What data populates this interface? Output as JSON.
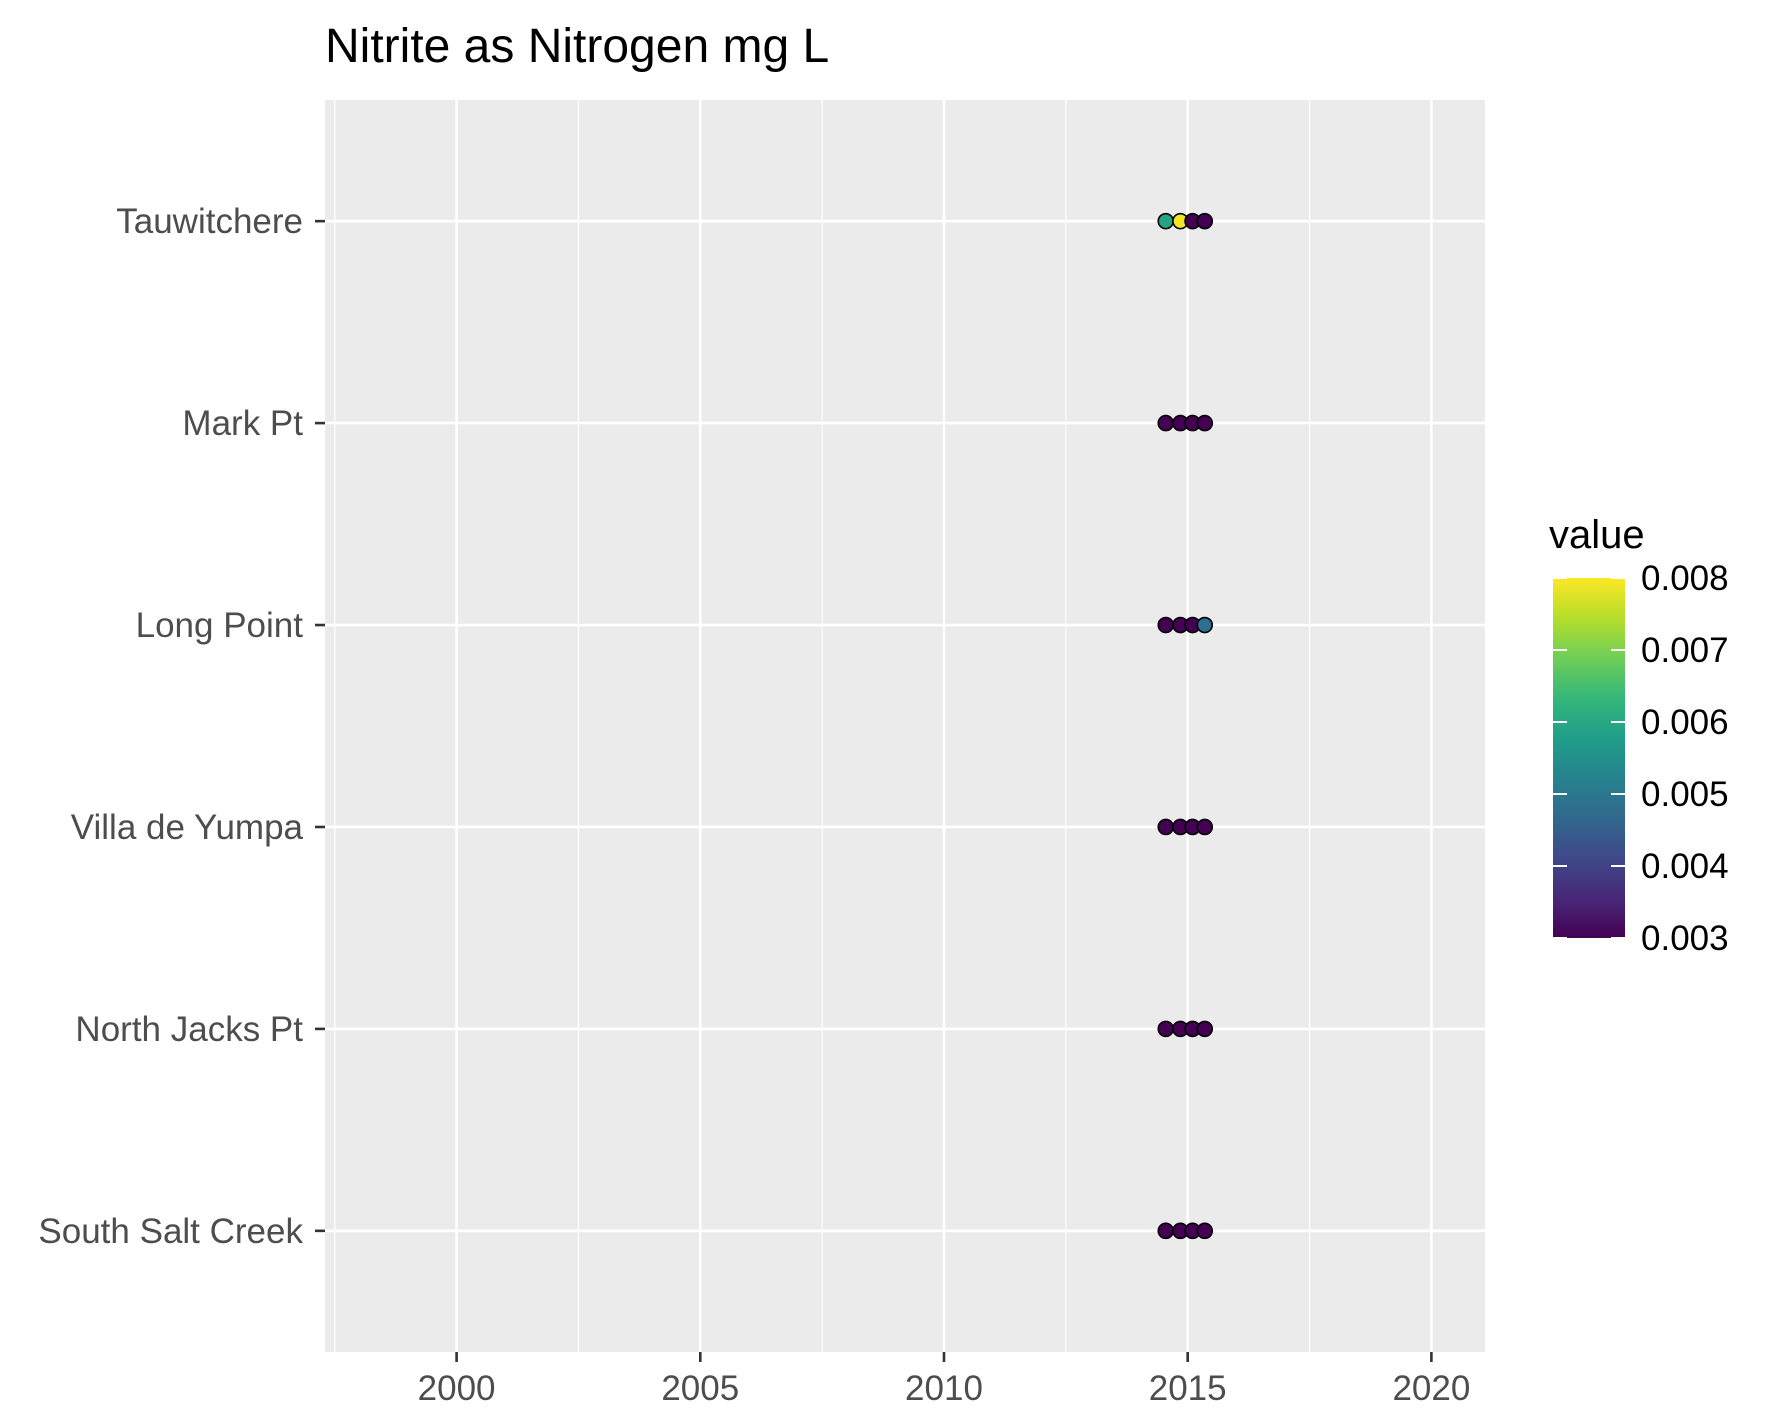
{
  "chart_data": {
    "type": "scatter",
    "title": "Nitrite as Nitrogen mg L",
    "xlabel": "",
    "ylabel": "",
    "xlim": [
      1997.3,
      2021.1
    ],
    "x_ticks": [
      2000,
      2005,
      2010,
      2015,
      2020
    ],
    "categories": [
      "Tauwitchere",
      "Mark Pt",
      "Long Point",
      "Villa de Yumpa",
      "North Jacks Pt",
      "South Salt Creek"
    ],
    "grid": true,
    "legend": {
      "title": "value",
      "placement": "right",
      "type": "colorbar",
      "min": 0.003,
      "max": 0.008,
      "ticks": [
        "0.008",
        "0.007",
        "0.006",
        "0.005",
        "0.004",
        "0.003"
      ]
    },
    "colormap": [
      "#440154",
      "#482878",
      "#3e4989",
      "#31688e",
      "#26828e",
      "#1f9e89",
      "#35b779",
      "#6ece58",
      "#b5de2b",
      "#fde725"
    ],
    "points": [
      {
        "site": "Tauwitchere",
        "x": 2014.55,
        "value": 0.0059
      },
      {
        "site": "Tauwitchere",
        "x": 2014.85,
        "value": 0.0079
      },
      {
        "site": "Tauwitchere",
        "x": 2015.1,
        "value": 0.003
      },
      {
        "site": "Tauwitchere",
        "x": 2015.35,
        "value": 0.003
      },
      {
        "site": "Mark Pt",
        "x": 2014.55,
        "value": 0.003
      },
      {
        "site": "Mark Pt",
        "x": 2014.85,
        "value": 0.003
      },
      {
        "site": "Mark Pt",
        "x": 2015.1,
        "value": 0.003
      },
      {
        "site": "Mark Pt",
        "x": 2015.35,
        "value": 0.003
      },
      {
        "site": "Long Point",
        "x": 2014.55,
        "value": 0.003
      },
      {
        "site": "Long Point",
        "x": 2014.85,
        "value": 0.003
      },
      {
        "site": "Long Point",
        "x": 2015.1,
        "value": 0.003
      },
      {
        "site": "Long Point",
        "x": 2015.35,
        "value": 0.0048
      },
      {
        "site": "Villa de Yumpa",
        "x": 2014.55,
        "value": 0.003
      },
      {
        "site": "Villa de Yumpa",
        "x": 2014.85,
        "value": 0.003
      },
      {
        "site": "Villa de Yumpa",
        "x": 2015.1,
        "value": 0.003
      },
      {
        "site": "Villa de Yumpa",
        "x": 2015.35,
        "value": 0.003
      },
      {
        "site": "North Jacks Pt",
        "x": 2014.55,
        "value": 0.003
      },
      {
        "site": "North Jacks Pt",
        "x": 2014.85,
        "value": 0.003
      },
      {
        "site": "North Jacks Pt",
        "x": 2015.1,
        "value": 0.003
      },
      {
        "site": "North Jacks Pt",
        "x": 2015.35,
        "value": 0.003
      },
      {
        "site": "South Salt Creek",
        "x": 2014.55,
        "value": 0.003
      },
      {
        "site": "South Salt Creek",
        "x": 2014.85,
        "value": 0.003
      },
      {
        "site": "South Salt Creek",
        "x": 2015.1,
        "value": 0.003
      },
      {
        "site": "South Salt Creek",
        "x": 2015.35,
        "value": 0.003
      }
    ]
  }
}
